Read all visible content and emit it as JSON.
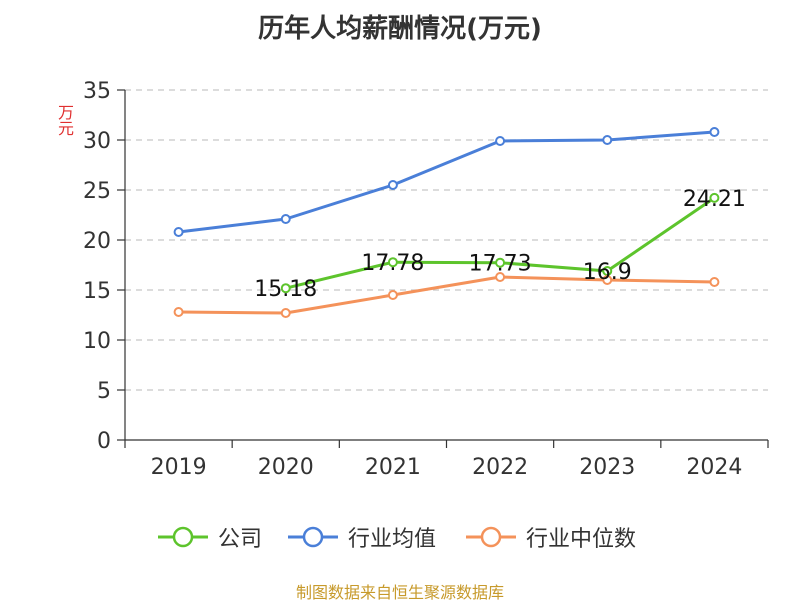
{
  "chart_data": {
    "type": "line",
    "title": "历年人均薪酬情况(万元)",
    "ylabel": "万元",
    "xlabel": "",
    "ylim": [
      0,
      35
    ],
    "yticks": [
      0,
      5,
      10,
      15,
      20,
      25,
      30,
      35
    ],
    "categories": [
      "2019",
      "2020",
      "2021",
      "2022",
      "2023",
      "2024"
    ],
    "grid": true,
    "legend_position": "bottom",
    "series": [
      {
        "name": "公司",
        "color": "#5dc42c",
        "values": [
          null,
          15.18,
          17.78,
          17.73,
          16.9,
          24.21
        ],
        "labels": [
          "",
          "15.18",
          "17.78",
          "17.73",
          "16.9",
          "24.21"
        ]
      },
      {
        "name": "行业均值",
        "color": "#4a7fd8",
        "values": [
          20.8,
          22.1,
          25.5,
          29.9,
          30.0,
          30.8
        ],
        "labels": [
          "",
          "",
          "",
          "",
          "",
          ""
        ]
      },
      {
        "name": "行业中位数",
        "color": "#f4925a",
        "values": [
          12.8,
          12.7,
          14.5,
          16.3,
          16.0,
          15.8
        ],
        "labels": [
          "",
          "",
          "",
          "",
          "",
          ""
        ]
      }
    ]
  },
  "source_text": "制图数据来自恒生聚源数据库"
}
